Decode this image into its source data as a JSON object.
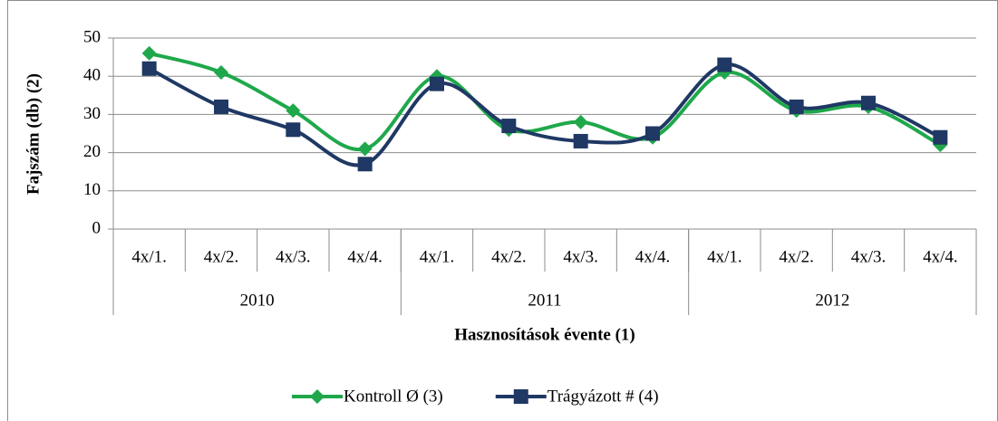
{
  "chart_data": {
    "type": "line",
    "y_label": "Fajszám (db) (2)",
    "x_label": "Hasznosítások évente (1)",
    "categories": [
      "4x/1.",
      "4x/2.",
      "4x/3.",
      "4x/4.",
      "4x/1.",
      "4x/2.",
      "4x/3.",
      "4x/4.",
      "4x/1.",
      "4x/2.",
      "4x/3.",
      "4x/4."
    ],
    "groups": [
      "2010",
      "2011",
      "2012"
    ],
    "series": [
      {
        "name": "Kontroll Ø (3)",
        "color": "#1fa84b",
        "marker": "diamond",
        "values": [
          46,
          41,
          31,
          21,
          40,
          26,
          28,
          24,
          41,
          31,
          32,
          22
        ]
      },
      {
        "name": "Trágyázott # (4)",
        "color": "#1f3864",
        "marker": "square",
        "values": [
          42,
          32,
          26,
          17,
          38,
          27,
          23,
          25,
          43,
          32,
          33,
          24
        ]
      }
    ],
    "ylim": [
      0,
      50
    ],
    "yticks": [
      0,
      10,
      20,
      30,
      40,
      50
    ],
    "grid": true,
    "legend": "bottom",
    "smooth": true
  }
}
